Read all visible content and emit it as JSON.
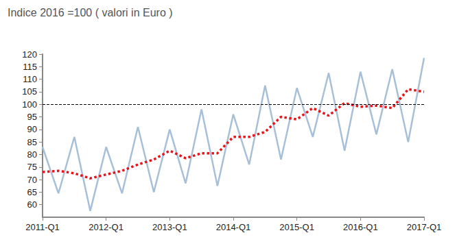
{
  "chart_data": {
    "type": "line",
    "title": "Indice 2016 =100 ( valori in Euro )",
    "categories": [
      "2011-Q1",
      null,
      null,
      null,
      "2012-Q1",
      null,
      null,
      null,
      "2013-Q1",
      null,
      null,
      null,
      "2014-Q1",
      null,
      null,
      null,
      "2015-Q1",
      null,
      null,
      null,
      "2016-Q1",
      null,
      null,
      null,
      "2017-Q1"
    ],
    "series": [
      {
        "color": "#a7c0d8",
        "line_style": "solid",
        "values": [
          83,
          64.5,
          87,
          57.5,
          83,
          64.5,
          91,
          65,
          90,
          68.5,
          98,
          67.5,
          96,
          76,
          107.5,
          78,
          106.5,
          87,
          112.5,
          81.5,
          113,
          88,
          114,
          85,
          118.5
        ]
      },
      {
        "color": "#e8141a",
        "line_style": "dotted",
        "values": [
          73,
          73.5,
          72.5,
          70.5,
          72,
          73.5,
          76,
          78,
          81.5,
          78.5,
          80.5,
          80.5,
          87,
          87,
          89,
          95,
          94,
          98.5,
          95.5,
          100.5,
          99,
          99.5,
          98.5,
          106,
          105
        ]
      }
    ],
    "hline": 100,
    "ylim": [
      55,
      120
    ],
    "yticks": [
      60,
      65,
      70,
      75,
      80,
      85,
      90,
      95,
      100,
      105,
      110,
      115,
      120
    ],
    "grid": false
  }
}
